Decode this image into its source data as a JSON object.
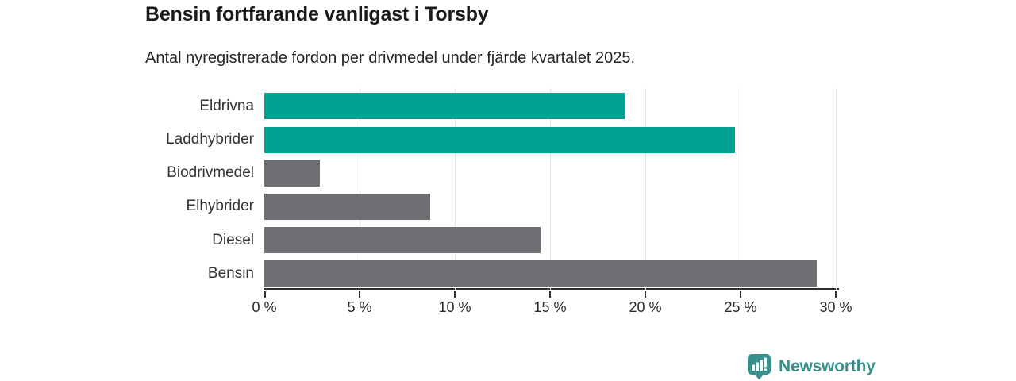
{
  "title": "Bensin fortfarande vanligast i Torsby",
  "subtitle": "Antal nyregistrerade fordon per drivmedel under fjärde kvartalet 2025.",
  "chart_data": {
    "type": "bar",
    "orientation": "horizontal",
    "title": "Bensin fortfarande vanligast i Torsby",
    "subtitle": "Antal nyregistrerade fordon per drivmedel under fjärde kvartalet 2025.",
    "categories": [
      "Eldrivna",
      "Laddhybrider",
      "Biodrivmedel",
      "Elhybrider",
      "Diesel",
      "Bensin"
    ],
    "values": [
      18.9,
      24.7,
      2.9,
      8.7,
      14.5,
      29.0
    ],
    "unit": "%",
    "bar_colors": [
      "#00a296",
      "#00a296",
      "#6e6e73",
      "#6e6e73",
      "#6e6e73",
      "#6e6e73"
    ],
    "highlight_color": "#00a296",
    "base_color": "#6e6e73",
    "xlim": [
      0,
      30
    ],
    "x_ticks": [
      0,
      5,
      10,
      15,
      20,
      25,
      30
    ],
    "x_tick_labels": [
      "0 %",
      "5 %",
      "10 %",
      "15 %",
      "20 %",
      "25 %",
      "30 %"
    ],
    "grid": true,
    "ylabel": "",
    "xlabel": ""
  },
  "footer": {
    "brand": "Newsworthy",
    "brand_color": "#37918a",
    "logo_icon": "bar-chart-speech-bubble-icon"
  }
}
